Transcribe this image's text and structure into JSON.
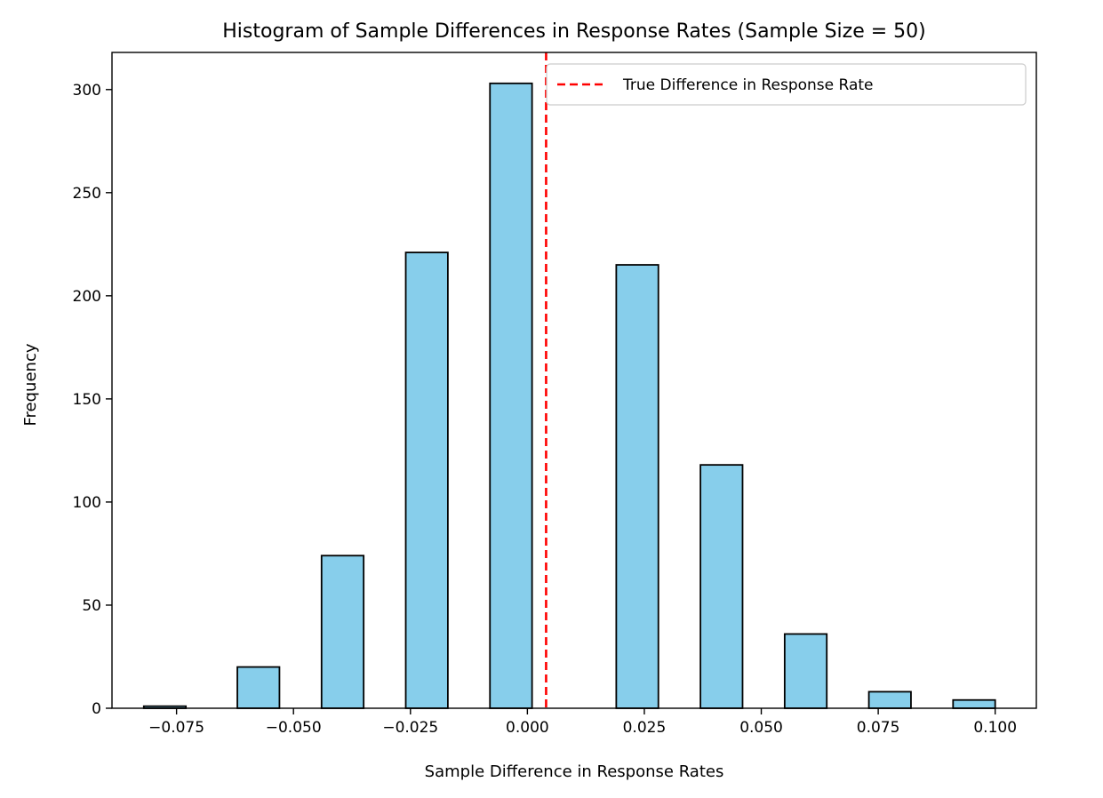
{
  "chart_data": {
    "type": "bar",
    "title": "Histogram of Sample Differences in Response Rates (Sample Size = 50)",
    "xlabel": "Sample Difference in Response Rates",
    "ylabel": "Frequency",
    "xlim": [
      -0.0888,
      0.1088
    ],
    "ylim": [
      0,
      318
    ],
    "x_ticks": [
      -0.075,
      -0.05,
      -0.025,
      0.0,
      0.025,
      0.05,
      0.075,
      0.1
    ],
    "x_tick_labels": [
      "−0.075",
      "−0.050",
      "−0.025",
      "0.000",
      "0.025",
      "0.050",
      "0.075",
      "0.100"
    ],
    "y_ticks": [
      0,
      50,
      100,
      150,
      200,
      250,
      300
    ],
    "y_tick_labels": [
      "0",
      "50",
      "100",
      "150",
      "200",
      "250",
      "300"
    ],
    "bins": [
      {
        "left": -0.082,
        "right": -0.073,
        "count": 1
      },
      {
        "left": -0.062,
        "right": -0.053,
        "count": 20
      },
      {
        "left": -0.044,
        "right": -0.035,
        "count": 74
      },
      {
        "left": -0.026,
        "right": -0.017,
        "count": 221
      },
      {
        "left": -0.008,
        "right": 0.001,
        "count": 303
      },
      {
        "left": 0.019,
        "right": 0.028,
        "count": 215
      },
      {
        "left": 0.037,
        "right": 0.046,
        "count": 118
      },
      {
        "left": 0.055,
        "right": 0.064,
        "count": 36
      },
      {
        "left": 0.073,
        "right": 0.082,
        "count": 8
      },
      {
        "left": 0.091,
        "right": 0.1,
        "count": 4
      }
    ],
    "reference_line": {
      "x": 0.004,
      "color": "#ff0000",
      "style": "dashed",
      "label": "True Difference in Response Rate"
    },
    "bar_color": "#87ceeb",
    "bar_edge_color": "#000000",
    "legend_position": "top-right",
    "grid": false
  }
}
